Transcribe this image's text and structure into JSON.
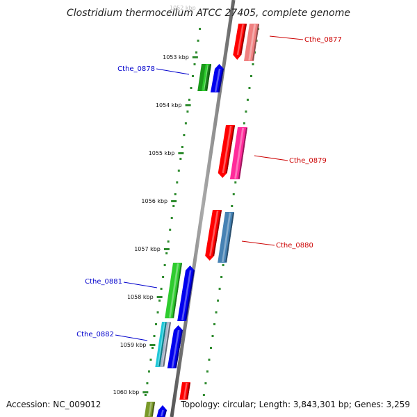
{
  "map": {
    "title": "Clostridium thermocellum ATCC 27405, complete genome",
    "accession": "Accession: NC_009012",
    "summary": "Topology: circular; Length: 3,843,301 bp; Genes: 3,259",
    "top_tick_partial": "1052 kbp"
  },
  "ticks": [
    {
      "label": "1053 kbp"
    },
    {
      "label": "1054 kbp"
    },
    {
      "label": "1055 kbp"
    },
    {
      "label": "1056 kbp"
    },
    {
      "label": "1057 kbp"
    },
    {
      "label": "1058 kbp"
    },
    {
      "label": "1059 kbp"
    },
    {
      "label": "1060 kbp"
    }
  ],
  "genes": [
    {
      "label": "Cthe_0877",
      "strand": "+",
      "color": "#cc0000"
    },
    {
      "label": "Cthe_0878",
      "strand": "-",
      "color": "#0000cc"
    },
    {
      "label": "Cthe_0879",
      "strand": "+",
      "color": "#cc0000"
    },
    {
      "label": "Cthe_0880",
      "strand": "+",
      "color": "#cc0000"
    },
    {
      "label": "Cthe_0881",
      "strand": "-",
      "color": "#0000cc"
    },
    {
      "label": "Cthe_0882",
      "strand": "-",
      "color": "#0000cc"
    }
  ],
  "colors": {
    "backbone": "#888888",
    "dots": "#2e8b2e",
    "plus_label": "#cc0000",
    "minus_label": "#0000cc",
    "cog_red": "#ff0000",
    "cog_pink": "#f08080",
    "cog_magenta": "#ff2a9a",
    "cog_steelblue": "#4682b4",
    "cog_green": "#2ecc2e",
    "cog_darkgreen": "#1a9a1a",
    "cog_cyan": "#1ec8d8",
    "cog_olive": "#7a9a2a",
    "cog_blue": "#0000ee",
    "cog_grey": "#a8b4c8"
  }
}
